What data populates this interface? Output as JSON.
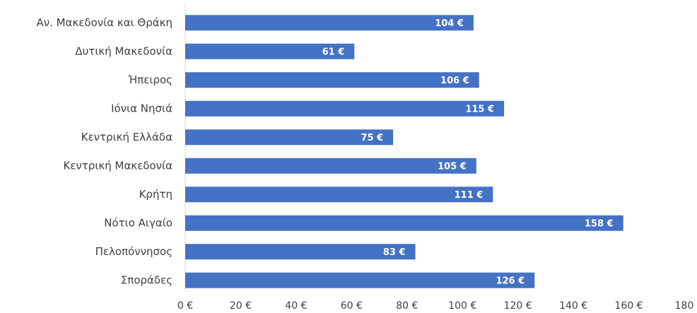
{
  "chart_data": {
    "type": "bar",
    "orientation": "horizontal",
    "categories": [
      "Αν. Μακεδονία και Θράκη",
      "Δυτική Μακεδονία",
      "Ήπειρος",
      "Ιόνια Νησιά",
      "Κεντρική Ελλάδα",
      "Κεντρική Μακεδονία",
      "Κρήτη",
      "Νότιο Αιγαίο",
      "Πελοπόννησος",
      "Σποράδες"
    ],
    "values": [
      104,
      61,
      106,
      115,
      75,
      105,
      111,
      158,
      83,
      126
    ],
    "data_labels": [
      "104 €",
      "61 €",
      "106 €",
      "115 €",
      "75 €",
      "105 €",
      "111 €",
      "158 €",
      "83 €",
      "126 €"
    ],
    "xticks": [
      0,
      20,
      40,
      60,
      80,
      100,
      120,
      140,
      160,
      180
    ],
    "xtick_labels": [
      "0 €",
      "20 €",
      "40 €",
      "60 €",
      "80 €",
      "100 €",
      "120 €",
      "140 €",
      "160 €",
      "180"
    ],
    "xlim": [
      0,
      180
    ],
    "grid": false,
    "bar_color": "#4472C4",
    "title": "",
    "xlabel": "",
    "ylabel": ""
  }
}
